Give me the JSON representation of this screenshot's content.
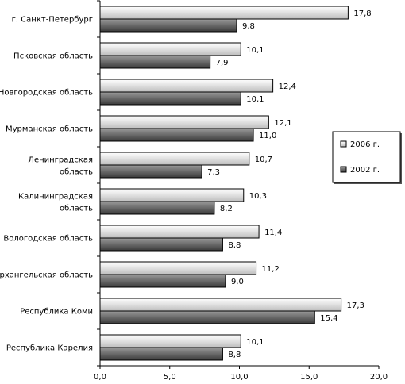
{
  "chart_data": {
    "type": "bar",
    "orientation": "horizontal",
    "categories": [
      [
        "г. Санкт-Петербург"
      ],
      [
        "Псковская область"
      ],
      [
        "Новгородская область"
      ],
      [
        "Мурманская область"
      ],
      [
        "Ленинградская",
        "область"
      ],
      [
        "Калининградская",
        "область"
      ],
      [
        "Вологодская область"
      ],
      [
        "Архангельская область"
      ],
      [
        "Республика Коми"
      ],
      [
        "Республика Карелия"
      ]
    ],
    "series": [
      {
        "name": "2006 г.",
        "color": "#e8e8e8",
        "values": [
          17.8,
          10.1,
          12.4,
          12.1,
          10.7,
          10.3,
          11.4,
          11.2,
          17.3,
          10.1
        ],
        "labels": [
          "17,8",
          "10,1",
          "12,4",
          "12,1",
          "10,7",
          "10,3",
          "11,4",
          "11,2",
          "17,3",
          "10,1"
        ]
      },
      {
        "name": "2002 г.",
        "color": "#6e6e6e",
        "values": [
          9.8,
          7.9,
          10.1,
          11.0,
          7.3,
          8.2,
          8.8,
          9.0,
          15.4,
          8.8
        ],
        "labels": [
          "9,8",
          "7,9",
          "10,1",
          "11,0",
          "7,3",
          "8,2",
          "8,8",
          "9,0",
          "15,4",
          "8,8"
        ]
      }
    ],
    "xlim": [
      0,
      20
    ],
    "xticks": [
      0,
      5,
      10,
      15,
      20
    ],
    "xtick_labels": [
      "0,0",
      "5,0",
      "10,0",
      "15,0",
      "20,0"
    ],
    "grid": false,
    "legend_position": "right"
  }
}
